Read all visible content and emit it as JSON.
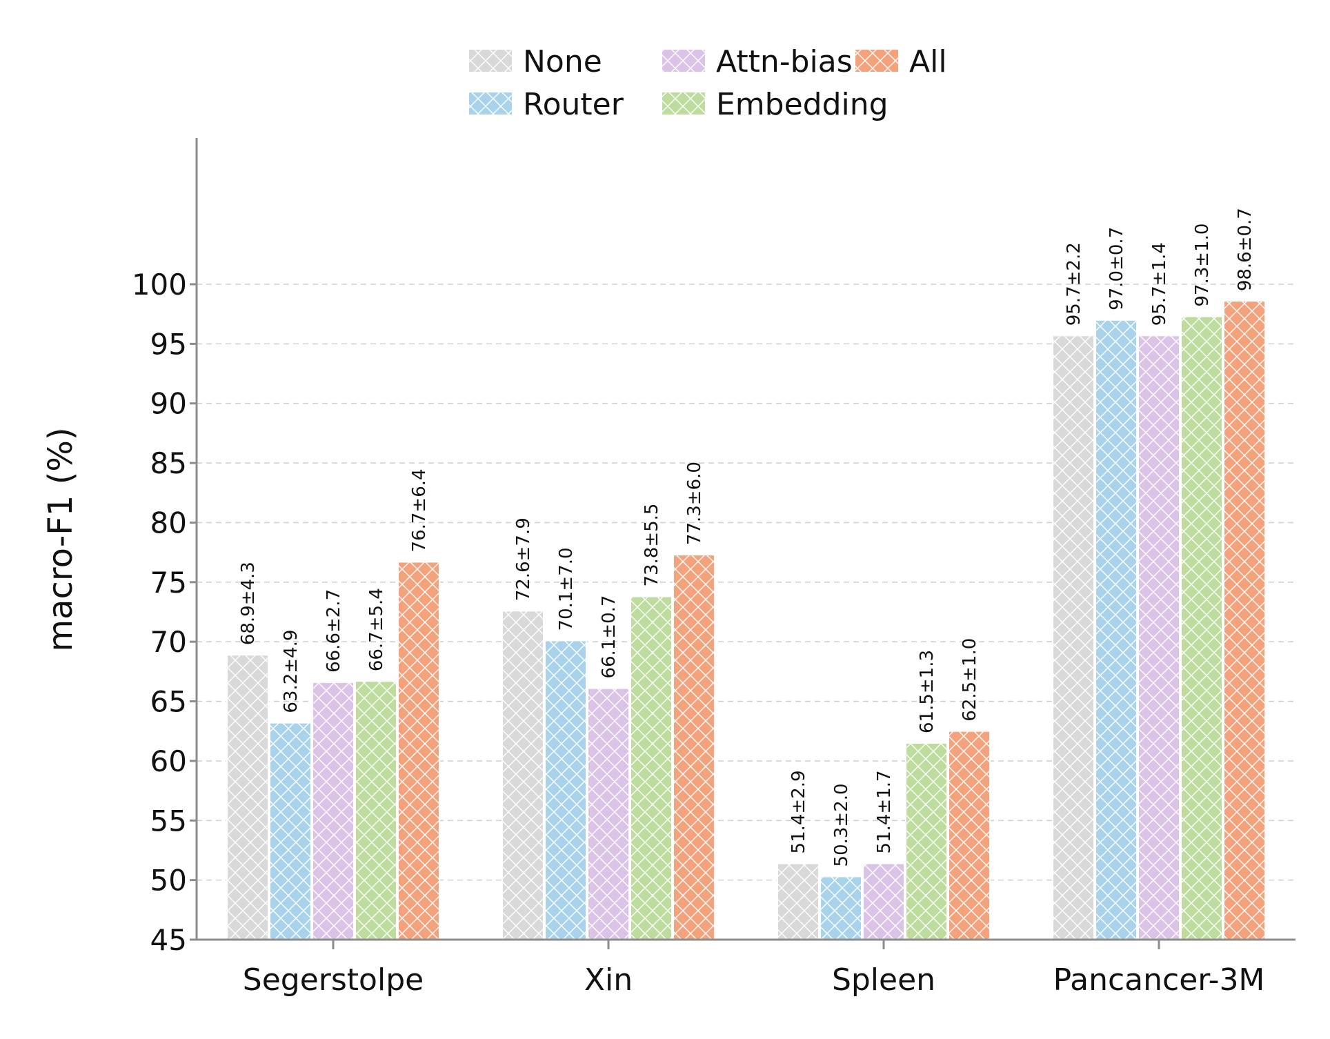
{
  "chart_data": {
    "type": "bar",
    "ylabel": "macro-F1 (%)",
    "xlabel": "",
    "ylim": [
      45,
      100
    ],
    "yticks": [
      45,
      50,
      55,
      60,
      65,
      70,
      75,
      80,
      85,
      90,
      95,
      100
    ],
    "grid": "horizontal dashed",
    "legend_position": "top-center",
    "categories": [
      "Segerstolpe",
      "Xin",
      "Spleen",
      "Pancancer-3M"
    ],
    "series": [
      {
        "name": "None",
        "color": "#d9d9d9",
        "values": [
          68.9,
          72.6,
          51.4,
          95.7
        ],
        "labels": [
          "68.9±4.3",
          "72.6±7.9",
          "51.4±2.9",
          "95.7±2.2"
        ]
      },
      {
        "name": "Router",
        "color": "#a8d3ea",
        "values": [
          63.2,
          70.1,
          50.3,
          97.0
        ],
        "labels": [
          "63.2±4.9",
          "70.1±7.0",
          "50.3±2.0",
          "97.0±0.7"
        ]
      },
      {
        "name": "Attn-bias",
        "color": "#dbc3e7",
        "values": [
          66.6,
          66.1,
          51.4,
          95.7
        ],
        "labels": [
          "66.6±2.7",
          "66.1±0.7",
          "51.4±1.7",
          "95.7±1.4"
        ]
      },
      {
        "name": "Embedding",
        "color": "#bddc9e",
        "values": [
          66.7,
          73.8,
          61.5,
          97.3
        ],
        "labels": [
          "66.7±5.4",
          "73.8±5.5",
          "61.5±1.3",
          "97.3±1.0"
        ]
      },
      {
        "name": "All",
        "color": "#f3a27c",
        "values": [
          76.7,
          77.3,
          62.5,
          98.6
        ],
        "labels": [
          "76.7±6.4",
          "77.3±6.0",
          "62.5±1.0",
          "98.6±0.7"
        ]
      }
    ]
  }
}
